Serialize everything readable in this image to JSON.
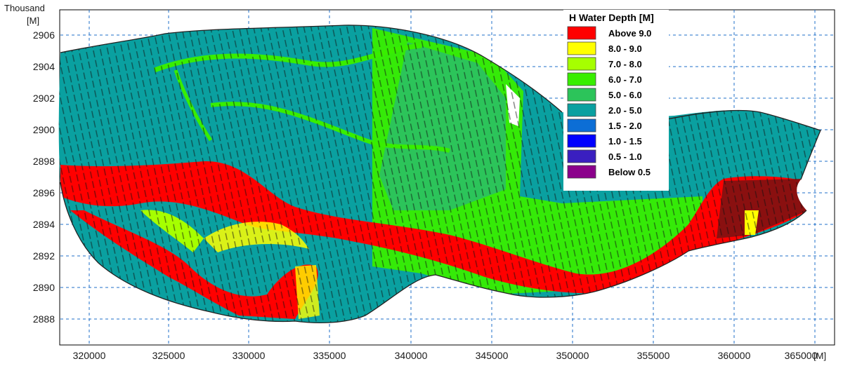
{
  "map": {
    "y_unit_top": "Thousand",
    "y_unit": "[M]",
    "x_unit": "[M]",
    "x_ticks": [
      "320000",
      "325000",
      "330000",
      "335000",
      "340000",
      "345000",
      "350000",
      "355000",
      "360000",
      "365000"
    ],
    "y_ticks": [
      "2906",
      "2904",
      "2902",
      "2900",
      "2898",
      "2896",
      "2894",
      "2892",
      "2890",
      "2888"
    ],
    "grid": true
  },
  "legend": {
    "title": "H Water Depth [M]",
    "items": [
      {
        "label": "Above 9.0",
        "color": "#ff0000"
      },
      {
        "label": "8.0 - 9.0",
        "color": "#ffff00"
      },
      {
        "label": "7.0 - 8.0",
        "color": "#a6ff00"
      },
      {
        "label": "6.0 - 7.0",
        "color": "#38ee00"
      },
      {
        "label": "5.0 - 6.0",
        "color": "#2cc45a"
      },
      {
        "label": "2.0 - 5.0",
        "color": "#0aa0a0"
      },
      {
        "label": "1.5 - 2.0",
        "color": "#0c6ed6"
      },
      {
        "label": "1.0 - 1.5",
        "color": "#0000ff"
      },
      {
        "label": "0.5 - 1.0",
        "color": "#3a1fc0"
      },
      {
        "label": "Below 0.5",
        "color": "#8b008b"
      }
    ]
  }
}
